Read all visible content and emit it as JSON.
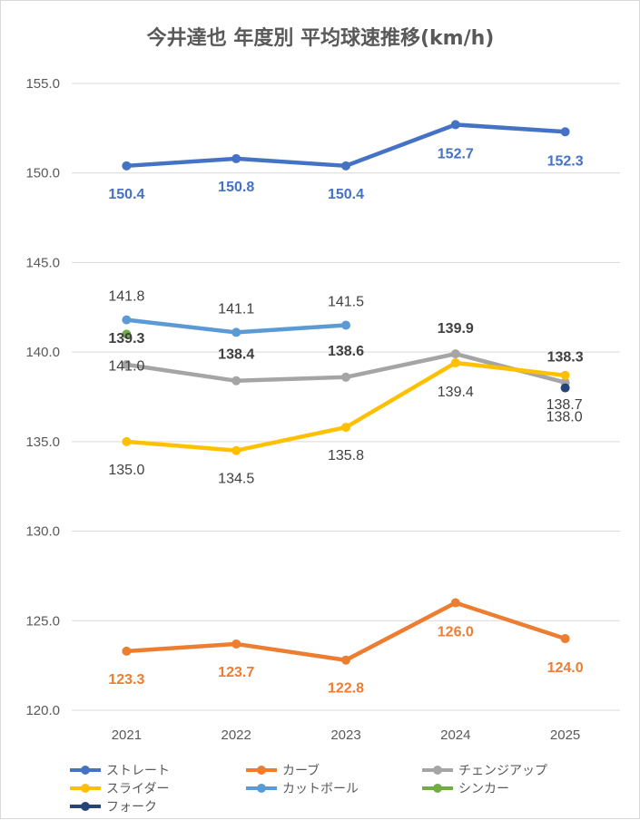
{
  "chart_data": {
    "type": "line",
    "title": "今井達也 年度別 平均球速推移(km/h)",
    "xlabel": "",
    "ylabel": "",
    "categories": [
      "2021",
      "2022",
      "2023",
      "2024",
      "2025"
    ],
    "ylim": [
      120.0,
      155.0
    ],
    "yticks": [
      "120.0",
      "125.0",
      "130.0",
      "135.0",
      "140.0",
      "145.0",
      "150.0",
      "155.0"
    ],
    "grid": true,
    "legend_position": "bottom",
    "series": [
      {
        "name": "ストレート",
        "color": "#4472c4",
        "values": [
          150.4,
          150.8,
          150.4,
          152.7,
          152.3
        ],
        "labels": [
          "150.4",
          "150.8",
          "150.4",
          "152.7",
          "152.3"
        ],
        "label_color": "#4472c4",
        "label_bold": true
      },
      {
        "name": "カーブ",
        "color": "#ed7d31",
        "values": [
          123.3,
          123.7,
          122.8,
          126.0,
          124.0
        ],
        "labels": [
          "123.3",
          "123.7",
          "122.8",
          "126.0",
          "124.0"
        ],
        "label_color": "#ed7d31",
        "label_bold": true
      },
      {
        "name": "チェンジアップ",
        "color": "#a5a5a5",
        "values": [
          139.3,
          138.4,
          138.6,
          139.9,
          138.3
        ],
        "labels": [
          "139.3",
          "138.4",
          "138.6",
          "139.9",
          "138.3"
        ],
        "label_color": "#404040",
        "label_bold": true
      },
      {
        "name": "スライダー",
        "color": "#ffc000",
        "values": [
          135.0,
          134.5,
          135.8,
          139.4,
          138.7
        ],
        "labels": [
          "135.0",
          "134.5",
          "135.8",
          "139.4",
          "138.7"
        ],
        "label_color": "#404040",
        "label_bold": false
      },
      {
        "name": "カットボール",
        "color": "#5b9bd5",
        "values": [
          141.8,
          141.1,
          141.5,
          null,
          null
        ],
        "labels": [
          "141.8",
          "141.1",
          "141.5",
          "",
          ""
        ],
        "label_color": "#404040",
        "label_bold": false
      },
      {
        "name": "シンカー",
        "color": "#70ad47",
        "values": [
          141.0,
          null,
          null,
          null,
          null
        ],
        "labels": [
          "141.0",
          "",
          "",
          "",
          ""
        ],
        "label_color": "#404040",
        "label_bold": false
      },
      {
        "name": "フォーク",
        "color": "#264478",
        "values": [
          null,
          null,
          null,
          null,
          138.0
        ],
        "labels": [
          "",
          "",
          "",
          "",
          "138.0"
        ],
        "label_color": "#404040",
        "label_bold": false
      }
    ]
  }
}
